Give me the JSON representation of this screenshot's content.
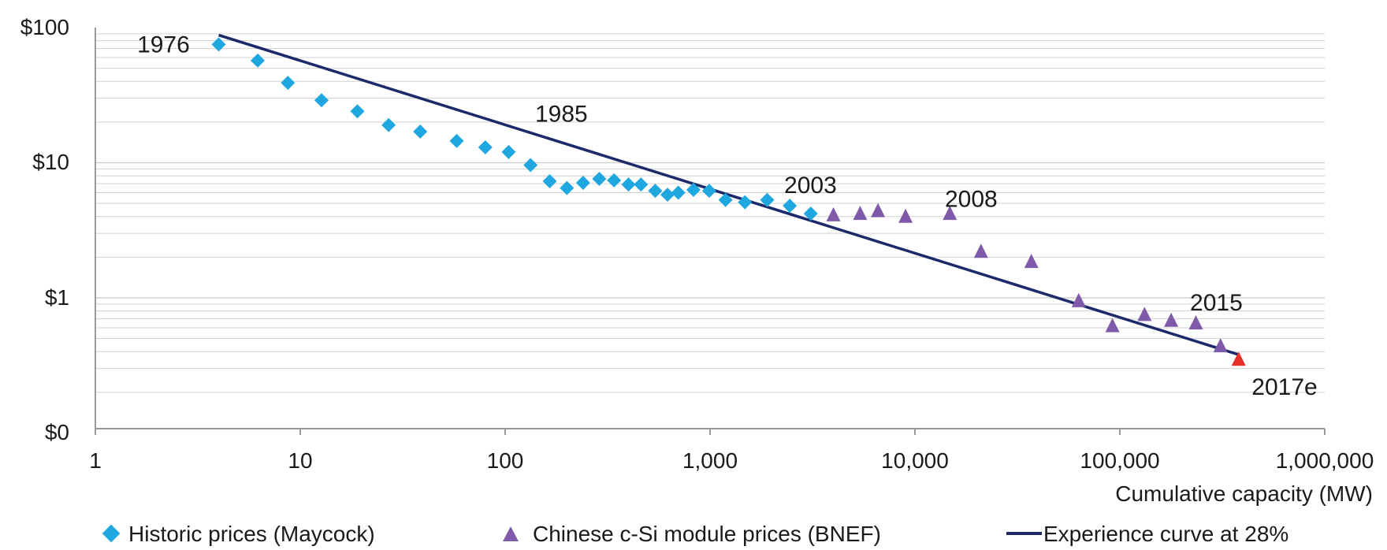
{
  "chart_data": {
    "type": "scatter",
    "title": "",
    "xlabel": "Cumulative capacity (MW)",
    "ylabel": "",
    "xscale": "log",
    "yscale": "log",
    "xlim": [
      1,
      1000000
    ],
    "y_ticks": [
      "$100",
      "$10",
      "$1",
      "$0"
    ],
    "x_ticks": [
      "1",
      "10",
      "100",
      "1,000",
      "10,000",
      "100,000",
      "1,000,000"
    ],
    "grid": "horizontal minor and major gridlines",
    "legend_position": "bottom",
    "colors": {
      "historic": "#1fa7e0",
      "chinese": "#7e5aa8",
      "estimate": "#e8302b",
      "curve": "#1c2a6b",
      "grid": "#d0d0d0",
      "axis": "#9a9a9a"
    },
    "series": [
      {
        "name": "Historic prices (Maycock)",
        "marker": "diamond",
        "points": [
          [
            4,
            75
          ],
          [
            6.2,
            57
          ],
          [
            8.7,
            39
          ],
          [
            12.7,
            29
          ],
          [
            19,
            24
          ],
          [
            27,
            19
          ],
          [
            38.5,
            17
          ],
          [
            58,
            14.5
          ],
          [
            80,
            13
          ],
          [
            104,
            12
          ],
          [
            133,
            9.6
          ],
          [
            165,
            7.3
          ],
          [
            200,
            6.5
          ],
          [
            240,
            7.1
          ],
          [
            288,
            7.6
          ],
          [
            340,
            7.4
          ],
          [
            400,
            6.9
          ],
          [
            460,
            6.9
          ],
          [
            540,
            6.2
          ],
          [
            620,
            5.8
          ],
          [
            700,
            6.0
          ],
          [
            830,
            6.3
          ],
          [
            990,
            6.2
          ],
          [
            1190,
            5.3
          ],
          [
            1480,
            5.1
          ],
          [
            1900,
            5.3
          ],
          [
            2450,
            4.8
          ],
          [
            3100,
            4.2
          ]
        ]
      },
      {
        "name": "Chinese c-Si module prices (BNEF)",
        "marker": "triangle",
        "points": [
          [
            4000,
            4.1
          ],
          [
            5400,
            4.2
          ],
          [
            6600,
            4.4
          ],
          [
            9000,
            4.0
          ],
          [
            14800,
            4.2
          ],
          [
            21000,
            2.2
          ],
          [
            37000,
            1.85
          ],
          [
            63000,
            0.95
          ],
          [
            92000,
            0.62
          ],
          [
            132000,
            0.75
          ],
          [
            178000,
            0.68
          ],
          [
            235000,
            0.65
          ],
          [
            310000,
            0.44
          ]
        ]
      },
      {
        "name": "2017e",
        "marker": "triangle-red",
        "points": [
          [
            380000,
            0.35
          ]
        ]
      },
      {
        "name": "Experience curve at 28%",
        "marker": "line",
        "points": [
          [
            4,
            88
          ],
          [
            380000,
            0.38
          ]
        ]
      }
    ],
    "annotations": [
      {
        "text": "1976",
        "x": 1.6,
        "y": 75
      },
      {
        "text": "1985",
        "x": 140,
        "y": 23
      },
      {
        "text": "2003",
        "x": 2300,
        "y": 6.8
      },
      {
        "text": "2008",
        "x": 14000,
        "y": 5.4
      },
      {
        "text": "2015",
        "x": 220000,
        "y": 0.92
      },
      {
        "text": "2017e",
        "x": 440000,
        "y": 0.22
      }
    ],
    "legend": [
      {
        "label": "Historic prices (Maycock)",
        "marker": "diamond"
      },
      {
        "label": "Chinese c-Si module prices (BNEF)",
        "marker": "triangle"
      },
      {
        "label": "Experience curve at 28%",
        "marker": "line"
      }
    ]
  }
}
